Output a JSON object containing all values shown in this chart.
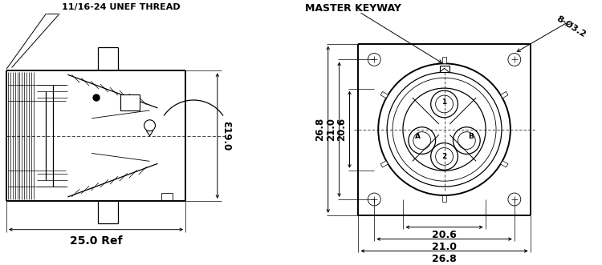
{
  "bg_color": "#ffffff",
  "left_view": {
    "label_thread": "11/16-24 UNEF THREAD",
    "label_dia": "Ɛ19.0",
    "label_ref": "25.0 Ref"
  },
  "right_view": {
    "label_keyway": "MASTER KEYWAY",
    "label_holes": "8-Ø3.2",
    "dim_vertical_outer": "26.8",
    "dim_vertical_mid": "21.0",
    "dim_vertical_inner": "20.6",
    "dim_horiz_inner": "20.6",
    "dim_horiz_mid": "21.0",
    "dim_horiz_outer": "26.8"
  }
}
